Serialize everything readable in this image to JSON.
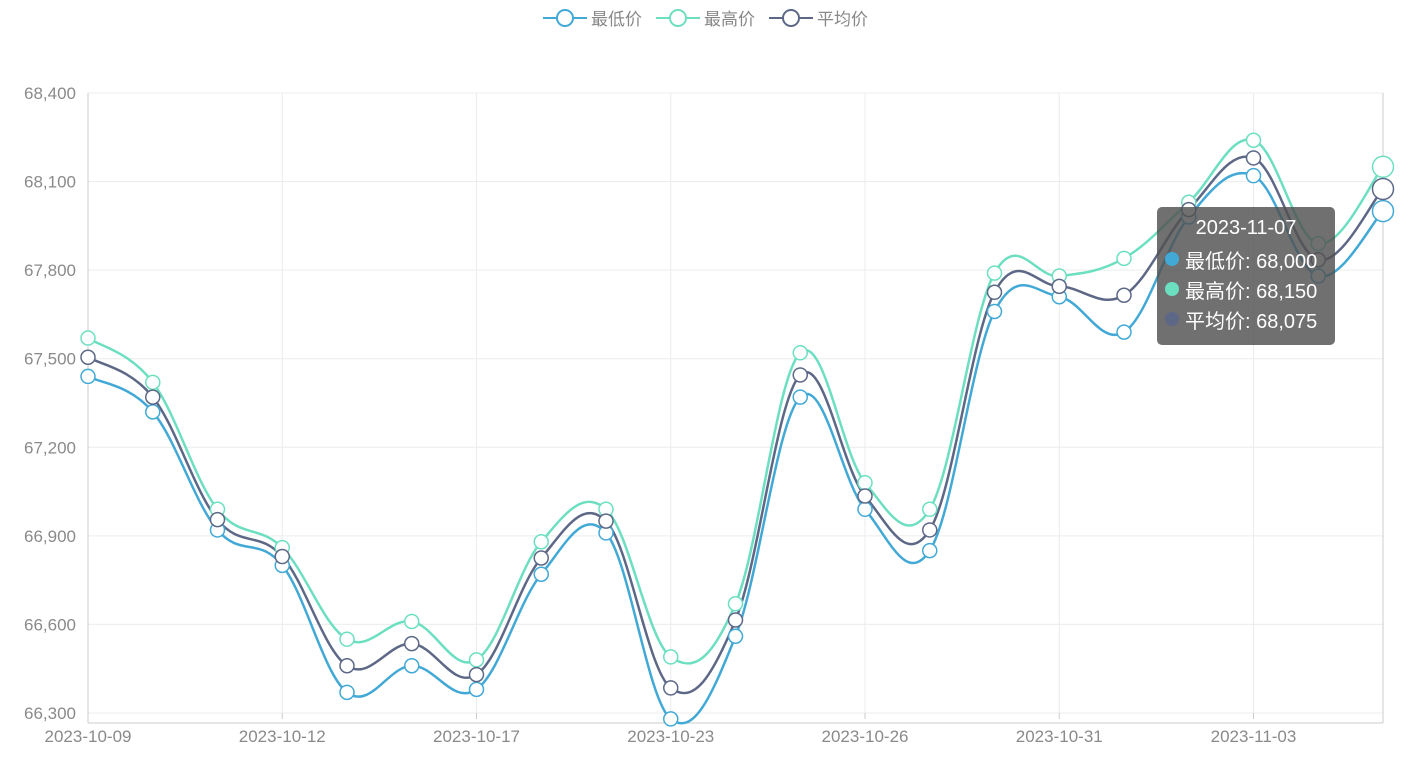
{
  "chart_data": {
    "type": "line",
    "smooth": true,
    "title": "",
    "xlabel": "",
    "ylabel": "",
    "ylim": [
      66300,
      68400
    ],
    "yticks": [
      66300,
      66600,
      66900,
      67200,
      67500,
      67800,
      68100,
      68400
    ],
    "ytick_labels": [
      "66,300",
      "66,600",
      "66,900",
      "67,200",
      "67,500",
      "67,800",
      "68,100",
      "68,400"
    ],
    "grid": true,
    "legend_position": "top-center",
    "x": [
      "2023-10-09",
      "2023-10-10",
      "2023-10-11",
      "2023-10-12",
      "2023-10-13",
      "2023-10-16",
      "2023-10-17",
      "2023-10-18",
      "2023-10-19",
      "2023-10-23",
      "2023-10-24",
      "2023-10-25",
      "2023-10-26",
      "2023-10-27",
      "2023-10-30",
      "2023-10-31",
      "2023-11-01",
      "2023-11-02",
      "2023-11-03",
      "2023-11-06",
      "2023-11-07"
    ],
    "x_tick_labels": [
      "2023-10-09",
      "2023-10-12",
      "2023-10-17",
      "2023-10-23",
      "2023-10-26",
      "2023-10-31",
      "2023-11-03"
    ],
    "x_tick_indices": [
      0,
      3,
      6,
      9,
      12,
      15,
      18
    ],
    "series": [
      {
        "name": "最低价",
        "color": "#42a9d6",
        "values": [
          67440,
          67320,
          66920,
          66800,
          66370,
          66460,
          66380,
          66770,
          66910,
          66280,
          66560,
          67370,
          66990,
          66850,
          67660,
          67710,
          67590,
          67980,
          68120,
          67780,
          68000
        ]
      },
      {
        "name": "最高价",
        "color": "#6ddfc1",
        "values": [
          67570,
          67420,
          66990,
          66860,
          66550,
          66610,
          66480,
          66880,
          66990,
          66490,
          66670,
          67520,
          67080,
          66990,
          67790,
          67780,
          67840,
          68030,
          68240,
          67890,
          68150
        ]
      },
      {
        "name": "平均价",
        "color": "#5d6887",
        "values": [
          67505,
          67370,
          66955,
          66830,
          66460,
          66535,
          66430,
          66825,
          66950,
          66385,
          66615,
          67445,
          67035,
          66920,
          67725,
          67745,
          67715,
          68005,
          68180,
          67835,
          68075
        ]
      }
    ]
  },
  "tooltip": {
    "title": "2023-11-07",
    "rows": [
      {
        "label": "最低价: 68,000",
        "color": "#42a9d6"
      },
      {
        "label": "最高价: 68,150",
        "color": "#6ddfc1"
      },
      {
        "label": "平均价: 68,075",
        "color": "#5d6887"
      }
    ]
  }
}
